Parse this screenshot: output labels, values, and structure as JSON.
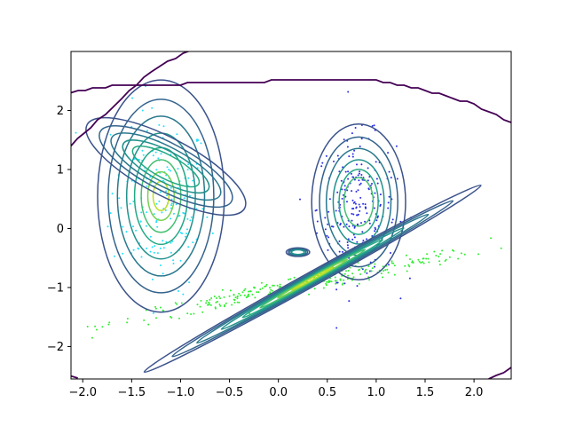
{
  "chart_data": {
    "type": "scatter",
    "title": "",
    "xlabel": "",
    "ylabel": "",
    "xlim": [
      -2.12,
      2.38
    ],
    "ylim": [
      -2.55,
      3.0
    ],
    "grid": false,
    "x_ticks": [
      {
        "value": -2.0,
        "label": "−2.0"
      },
      {
        "value": -1.5,
        "label": "−1.5"
      },
      {
        "value": -1.0,
        "label": "−1.0"
      },
      {
        "value": -0.5,
        "label": "−0.5"
      },
      {
        "value": 0.0,
        "label": "0.0"
      },
      {
        "value": 0.5,
        "label": "0.5"
      },
      {
        "value": 1.0,
        "label": "1.0"
      },
      {
        "value": 1.5,
        "label": "1.5"
      },
      {
        "value": 2.0,
        "label": "2.0"
      }
    ],
    "y_ticks": [
      {
        "value": -2,
        "label": "−2"
      },
      {
        "value": -1,
        "label": "−1"
      },
      {
        "value": 0,
        "label": "0"
      },
      {
        "value": 1,
        "label": "1"
      },
      {
        "value": 2,
        "label": "2"
      }
    ],
    "clusters": [
      {
        "color": "#22e0ff",
        "center": [
          -1.2,
          0.5
        ],
        "sd": [
          0.25,
          0.75
        ],
        "corr": -0.1,
        "count": 180
      },
      {
        "color": "#2a2ee6",
        "center": [
          0.8,
          0.35
        ],
        "sd": [
          0.2,
          0.6
        ],
        "corr": 0.0,
        "count": 220
      },
      {
        "color": "#33ee33",
        "center": [
          0.25,
          -0.95
        ],
        "sd": [
          0.95,
          0.32
        ],
        "corr": 0.97,
        "count": 300
      }
    ],
    "components": [
      {
        "center": [
          -1.2,
          0.55
        ],
        "sd": [
          0.27,
          0.82
        ],
        "angle_deg": 0,
        "color_rank": 1.0
      },
      {
        "center": [
          -1.15,
          1.05
        ],
        "sd": [
          0.38,
          0.2
        ],
        "angle_deg": -28,
        "color_rank": 0.55
      },
      {
        "center": [
          0.82,
          0.45
        ],
        "sd": [
          0.2,
          0.55
        ],
        "angle_deg": 0,
        "color_rank": 0.7
      },
      {
        "center": [
          0.35,
          -0.85
        ],
        "sd": [
          0.82,
          0.05
        ],
        "angle_deg": 29,
        "color_rank": 1.0
      },
      {
        "center": [
          0.2,
          -0.4
        ],
        "sd": [
          0.05,
          0.03
        ],
        "angle_deg": 0,
        "color_rank": 0.4
      }
    ],
    "outer_contour": {
      "color": "#440154",
      "upper": [
        [
          -2.12,
          2.3
        ],
        [
          -1.9,
          2.38
        ],
        [
          -1.5,
          2.45
        ],
        [
          -1.0,
          2.45
        ],
        [
          -0.5,
          2.48
        ],
        [
          0.0,
          2.5
        ],
        [
          0.5,
          2.5
        ],
        [
          1.0,
          2.5
        ],
        [
          1.5,
          2.35
        ],
        [
          2.0,
          2.1
        ],
        [
          2.38,
          1.8
        ]
      ],
      "diagonal": [
        [
          -2.12,
          1.4
        ],
        [
          -1.85,
          1.82
        ],
        [
          -1.6,
          2.22
        ],
        [
          -1.3,
          2.65
        ],
        [
          -1.05,
          2.9
        ],
        [
          -0.9,
          3.0
        ]
      ],
      "bottom_right": [
        [
          2.15,
          -2.55
        ],
        [
          2.38,
          -2.37
        ]
      ],
      "bottom_left": [
        [
          -2.12,
          -2.5
        ],
        [
          -2.05,
          -2.55
        ]
      ]
    }
  }
}
